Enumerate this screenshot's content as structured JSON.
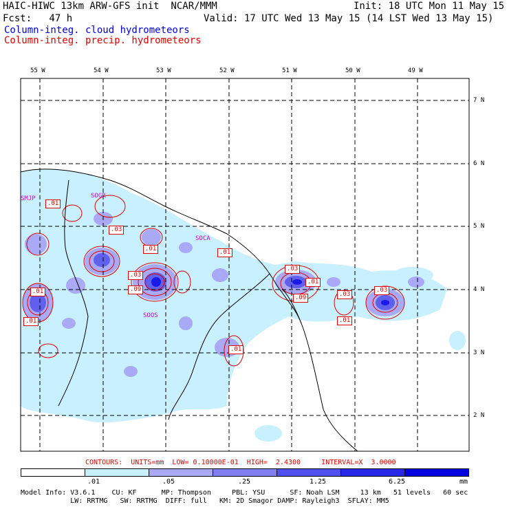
{
  "header": {
    "title": "HAIC-HIWC 13km ARW-GFS init  NCAR/MMM",
    "init": "Init: 18 UTC Mon 11 May 15",
    "fcst": "Fcst:   47 h",
    "valid": "Valid: 17 UTC Wed 13 May 15 (14 LST Wed 13 May 15)",
    "field1": "Column-integ. cloud hydrometeors",
    "field2": "Column-integ. precip. hydrometeors"
  },
  "map": {
    "lon_labels": [
      "55 W",
      "54 W",
      "53 W",
      "52 W",
      "51 W",
      "50 W",
      "49 W"
    ],
    "lat_labels": [
      "7 N",
      "6 N",
      "5 N",
      "4 N",
      "3 N",
      "2 N"
    ],
    "stations": [
      "SMJP",
      "SOGR",
      "SOCA",
      "SOOS"
    ],
    "contour_labels": [
      ".01",
      ".03",
      ".01",
      ".03",
      ".09",
      ".01",
      ".01",
      ".01",
      ".03",
      ".01",
      ".09",
      ".03",
      ".01",
      ".03",
      ".01"
    ],
    "colors": {
      "coast": "#000000",
      "grid": "#000000",
      "precip": "#e00000",
      "station": "#d000d0"
    }
  },
  "footer": {
    "contours": "CONTOURS:  UNITS=mm  LOW= 0.10000E-01  HIGH=  2.4300     INTERVAL=X  3.0000",
    "scale_ticks": [
      ".01",
      ".05",
      ".25",
      "1.25",
      "6.25",
      "mm"
    ],
    "scale_colors": [
      "#ffffff",
      "#c8f0ff",
      "#a9a9f5",
      "#8080f0",
      "#5050ee",
      "#2828e8",
      "#0000e0"
    ],
    "model_info_1": "Model Info: V3.6.1    CU: KF      MP: Thompson     PBL: YSU      SF: Noah LSM     13 km   51 levels   60 sec",
    "model_info_2": "            LW: RRTMG   SW: RRTMG  DIFF: full   KM: 2D Smagor DAMP: Rayleigh3  SFLAY: MM5"
  }
}
